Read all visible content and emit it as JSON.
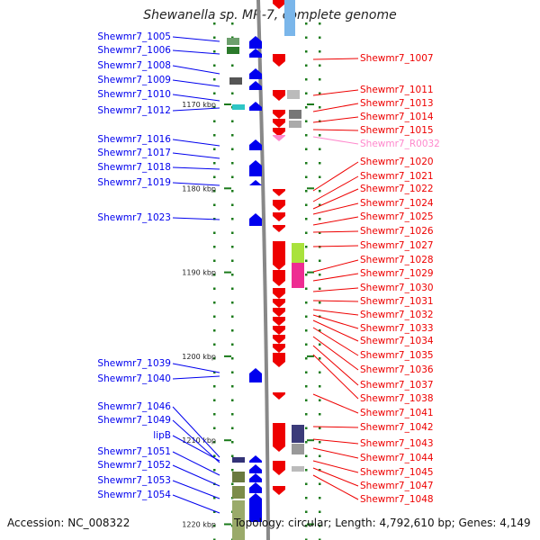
{
  "title": "Shewanella sp. MR-7, complete genome",
  "accession_text": "Accession: NC_008322",
  "summary_text": "Topology: circular; Length: 4,792,610 bp; Genes: 4,149",
  "colors": {
    "forward": "#0000ee",
    "reverse": "#ee0000",
    "rna": "#ff88cc",
    "ruler": "#888888",
    "dot": "#1a7a1a"
  },
  "ruler_ticks": [
    {
      "label": "1170 kbp",
      "kbp": 1170
    },
    {
      "label": "1180 kbp",
      "kbp": 1180
    },
    {
      "label": "1190 kbp",
      "kbp": 1190
    },
    {
      "label": "1200 kbp",
      "kbp": 1200
    },
    {
      "label": "1210 kbp",
      "kbp": 1210
    },
    {
      "label": "1220 kbp",
      "kbp": 1220
    }
  ],
  "left_labels": [
    {
      "text": "Shewmr7_1005"
    },
    {
      "text": "Shewmr7_1006"
    },
    {
      "text": "Shewmr7_1008"
    },
    {
      "text": "Shewmr7_1009"
    },
    {
      "text": "Shewmr7_1010"
    },
    {
      "text": "Shewmr7_1012"
    },
    {
      "text": "Shewmr7_1016"
    },
    {
      "text": "Shewmr7_1017"
    },
    {
      "text": "Shewmr7_1018"
    },
    {
      "text": "Shewmr7_1019"
    },
    {
      "text": "Shewmr7_1023"
    },
    {
      "text": "Shewmr7_1039"
    },
    {
      "text": "Shewmr7_1040"
    },
    {
      "text": "Shewmr7_1046"
    },
    {
      "text": "Shewmr7_1049"
    },
    {
      "text": "lipB"
    },
    {
      "text": "Shewmr7_1051"
    },
    {
      "text": "Shewmr7_1052"
    },
    {
      "text": "Shewmr7_1053"
    },
    {
      "text": "Shewmr7_1054"
    }
  ],
  "right_labels": [
    {
      "text": "Shewmr7_1007",
      "type": "gene"
    },
    {
      "text": "Shewmr7_1011",
      "type": "gene"
    },
    {
      "text": "Shewmr7_1013",
      "type": "gene"
    },
    {
      "text": "Shewmr7_1014",
      "type": "gene"
    },
    {
      "text": "Shewmr7_1015",
      "type": "gene"
    },
    {
      "text": "Shewmr7_R0032",
      "type": "rna"
    },
    {
      "text": "Shewmr7_1020",
      "type": "gene"
    },
    {
      "text": "Shewmr7_1021",
      "type": "gene"
    },
    {
      "text": "Shewmr7_1022",
      "type": "gene"
    },
    {
      "text": "Shewmr7_1024",
      "type": "gene"
    },
    {
      "text": "Shewmr7_1025",
      "type": "gene"
    },
    {
      "text": "Shewmr7_1026",
      "type": "gene"
    },
    {
      "text": "Shewmr7_1027",
      "type": "gene"
    },
    {
      "text": "Shewmr7_1028",
      "type": "gene"
    },
    {
      "text": "Shewmr7_1029",
      "type": "gene"
    },
    {
      "text": "Shewmr7_1030",
      "type": "gene"
    },
    {
      "text": "Shewmr7_1031",
      "type": "gene"
    },
    {
      "text": "Shewmr7_1032",
      "type": "gene"
    },
    {
      "text": "Shewmr7_1033",
      "type": "gene"
    },
    {
      "text": "Shewmr7_1034",
      "type": "gene"
    },
    {
      "text": "Shewmr7_1035",
      "type": "gene"
    },
    {
      "text": "Shewmr7_1036",
      "type": "gene"
    },
    {
      "text": "Shewmr7_1037",
      "type": "gene"
    },
    {
      "text": "Shewmr7_1038",
      "type": "gene"
    },
    {
      "text": "Shewmr7_1041",
      "type": "gene"
    },
    {
      "text": "Shewmr7_1042",
      "type": "gene"
    },
    {
      "text": "Shewmr7_1043",
      "type": "gene"
    },
    {
      "text": "Shewmr7_1044",
      "type": "gene"
    },
    {
      "text": "Shewmr7_1045",
      "type": "gene"
    },
    {
      "text": "Shewmr7_1047",
      "type": "gene"
    },
    {
      "text": "Shewmr7_1048",
      "type": "gene"
    }
  ]
}
